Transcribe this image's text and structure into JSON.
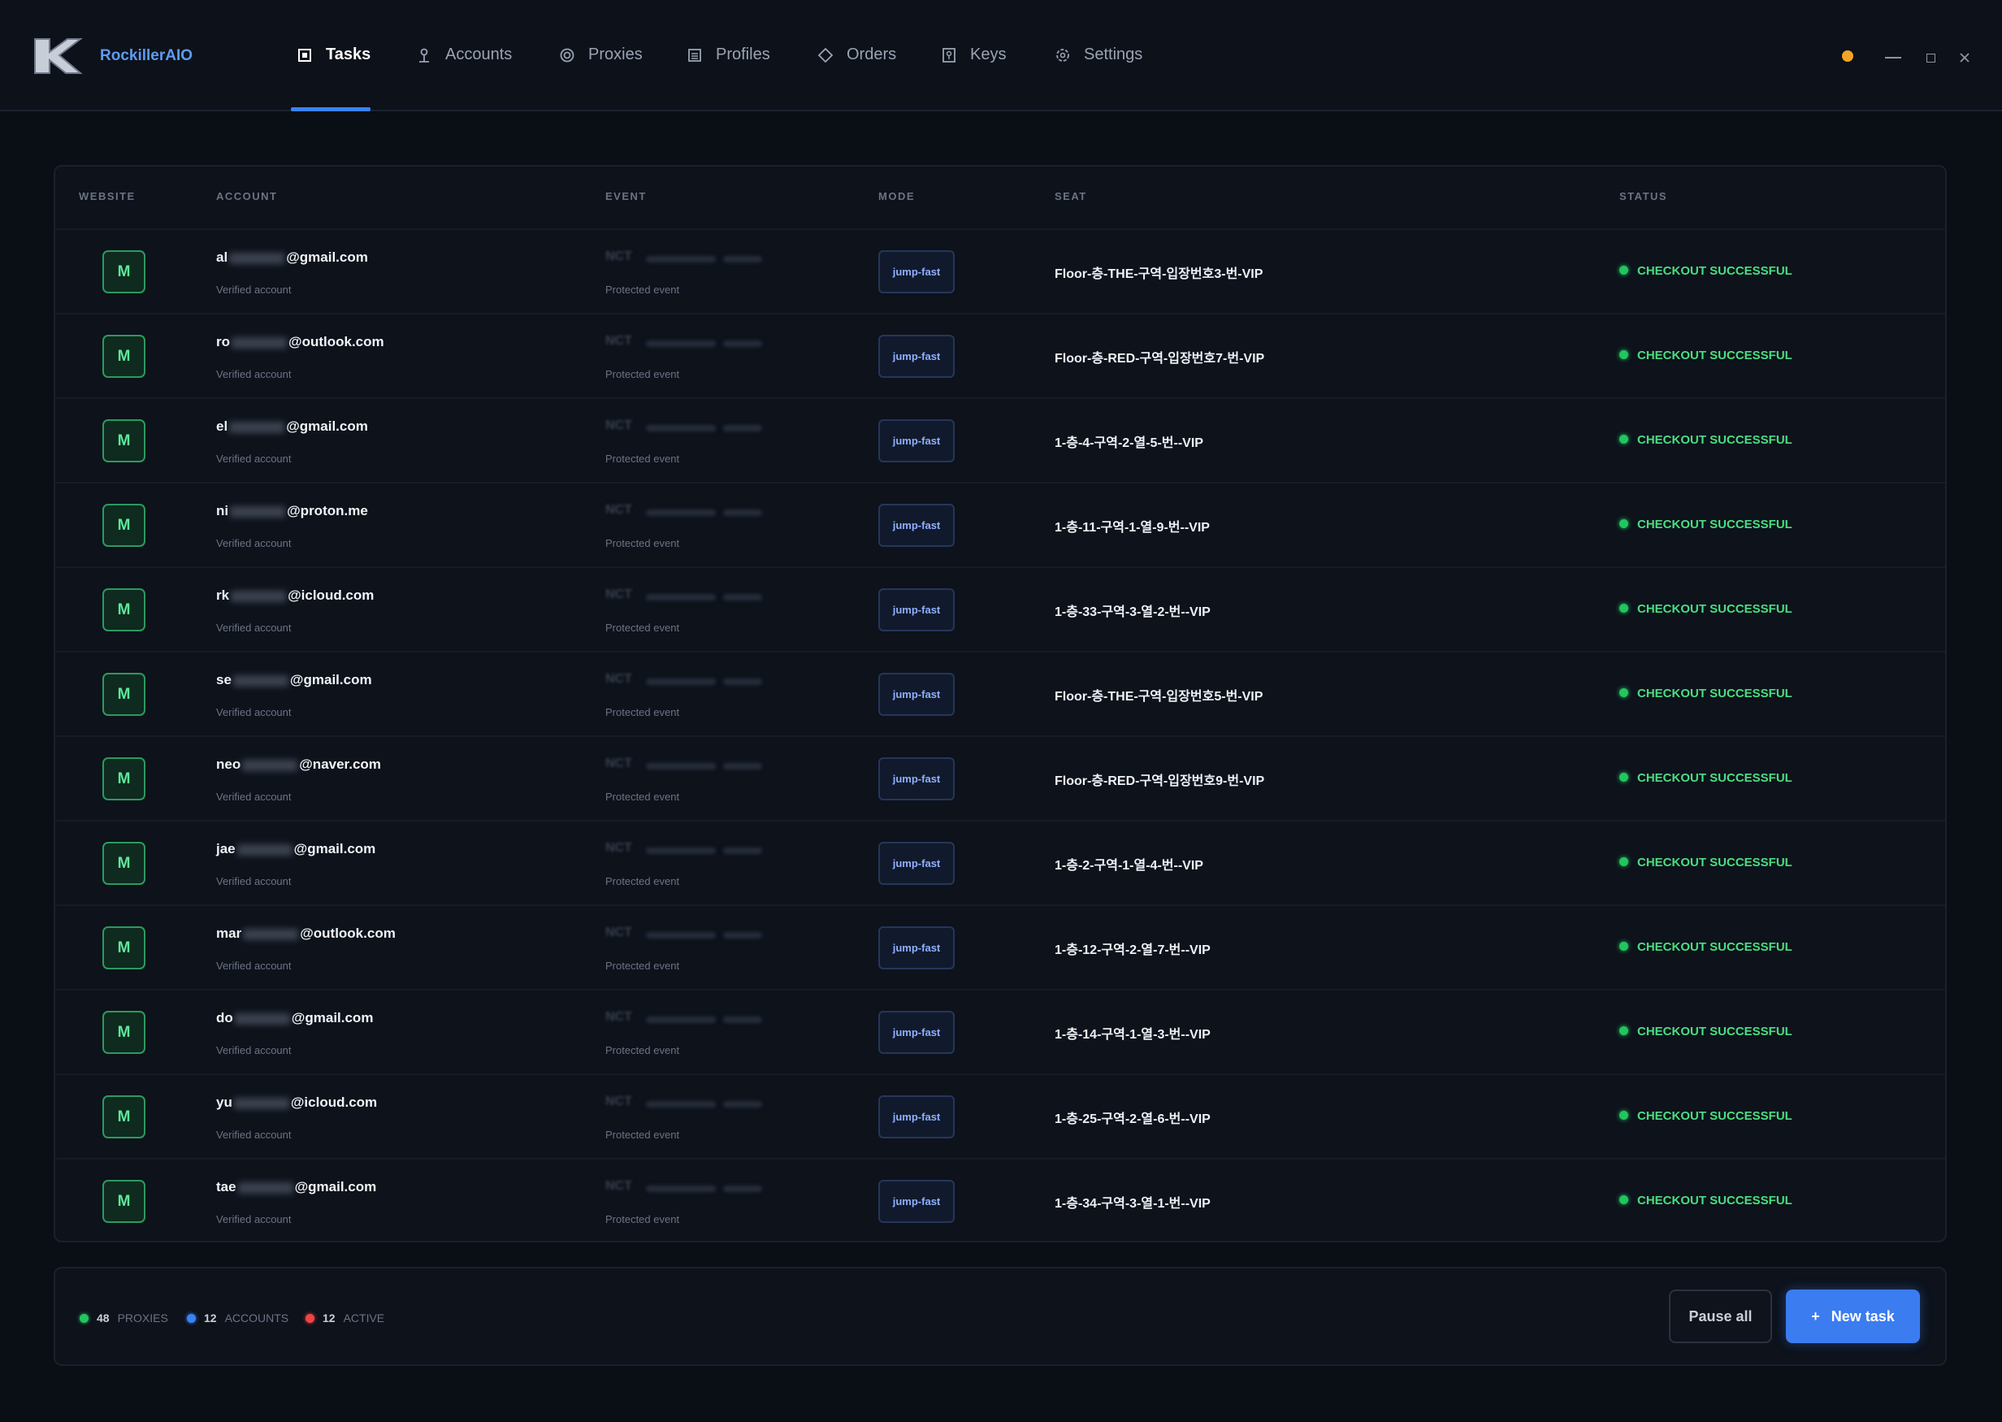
{
  "header": {
    "brand": "RockillerAIO",
    "nav": [
      "Tasks",
      "Accounts",
      "Proxies",
      "Profiles",
      "Orders",
      "Keys",
      "Settings"
    ]
  },
  "table": {
    "columns": [
      "WEBSITE",
      "ACCOUNT",
      "EVENT",
      "MODE",
      "SEAT",
      "STATUS"
    ],
    "rows": [
      {
        "website": "M",
        "account_prefix": "al",
        "account_domain": "@gmail.com",
        "account_note": "Verified account",
        "event": "NCT",
        "event_note": "Protected event",
        "mode": "jump-fast",
        "seat": "Floor-층-THE-구역-입장번호3-번-VIP",
        "status": "CHECKOUT SUCCESSFUL"
      },
      {
        "website": "M",
        "account_prefix": "ro",
        "account_domain": "@outlook.com",
        "account_note": "Verified account",
        "event": "NCT",
        "event_note": "Protected event",
        "mode": "jump-fast",
        "seat": "Floor-층-RED-구역-입장번호7-번-VIP",
        "status": "CHECKOUT SUCCESSFUL"
      },
      {
        "website": "M",
        "account_prefix": "el",
        "account_domain": "@gmail.com",
        "account_note": "Verified account",
        "event": "NCT",
        "event_note": "Protected event",
        "mode": "jump-fast",
        "seat": "1-층-4-구역-2-열-5-번--VIP",
        "status": "CHECKOUT SUCCESSFUL"
      },
      {
        "website": "M",
        "account_prefix": "ni",
        "account_domain": "@proton.me",
        "account_note": "Verified account",
        "event": "NCT",
        "event_note": "Protected event",
        "mode": "jump-fast",
        "seat": "1-층-11-구역-1-열-9-번--VIP",
        "status": "CHECKOUT SUCCESSFUL"
      },
      {
        "website": "M",
        "account_prefix": "rk",
        "account_domain": "@icloud.com",
        "account_note": "Verified account",
        "event": "NCT",
        "event_note": "Protected event",
        "mode": "jump-fast",
        "seat": "1-층-33-구역-3-열-2-번--VIP",
        "status": "CHECKOUT SUCCESSFUL"
      },
      {
        "website": "M",
        "account_prefix": "se",
        "account_domain": "@gmail.com",
        "account_note": "Verified account",
        "event": "NCT",
        "event_note": "Protected event",
        "mode": "jump-fast",
        "seat": "Floor-층-THE-구역-입장번호5-번-VIP",
        "status": "CHECKOUT SUCCESSFUL"
      },
      {
        "website": "M",
        "account_prefix": "neo",
        "account_domain": "@naver.com",
        "account_note": "Verified account",
        "event": "NCT",
        "event_note": "Protected event",
        "mode": "jump-fast",
        "seat": "Floor-층-RED-구역-입장번호9-번-VIP",
        "status": "CHECKOUT SUCCESSFUL"
      },
      {
        "website": "M",
        "account_prefix": "jae",
        "account_domain": "@gmail.com",
        "account_note": "Verified account",
        "event": "NCT",
        "event_note": "Protected event",
        "mode": "jump-fast",
        "seat": "1-층-2-구역-1-열-4-번--VIP",
        "status": "CHECKOUT SUCCESSFUL"
      },
      {
        "website": "M",
        "account_prefix": "mar",
        "account_domain": "@outlook.com",
        "account_note": "Verified account",
        "event": "NCT",
        "event_note": "Protected event",
        "mode": "jump-fast",
        "seat": "1-층-12-구역-2-열-7-번--VIP",
        "status": "CHECKOUT SUCCESSFUL"
      },
      {
        "website": "M",
        "account_prefix": "do",
        "account_domain": "@gmail.com",
        "account_note": "Verified account",
        "event": "NCT",
        "event_note": "Protected event",
        "mode": "jump-fast",
        "seat": "1-층-14-구역-1-열-3-번--VIP",
        "status": "CHECKOUT SUCCESSFUL"
      },
      {
        "website": "M",
        "account_prefix": "yu",
        "account_domain": "@icloud.com",
        "account_note": "Verified account",
        "event": "NCT",
        "event_note": "Protected event",
        "mode": "jump-fast",
        "seat": "1-층-25-구역-2-열-6-번--VIP",
        "status": "CHECKOUT SUCCESSFUL"
      },
      {
        "website": "M",
        "account_prefix": "tae",
        "account_domain": "@gmail.com",
        "account_note": "Verified account",
        "event": "NCT",
        "event_note": "Protected event",
        "mode": "jump-fast",
        "seat": "1-층-34-구역-3-열-1-번--VIP",
        "status": "CHECKOUT SUCCESSFUL"
      }
    ]
  },
  "footer": {
    "stats": [
      {
        "value": 48,
        "label": "PROXIES",
        "color": "#22c55e"
      },
      {
        "value": 12,
        "label": "ACCOUNTS",
        "color": "#3b82f6"
      },
      {
        "value": 12,
        "label": "ACTIVE",
        "color": "#ef4444"
      }
    ],
    "pause_button": "Pause all",
    "new_task_icon": "+",
    "new_task_button": "New task"
  }
}
